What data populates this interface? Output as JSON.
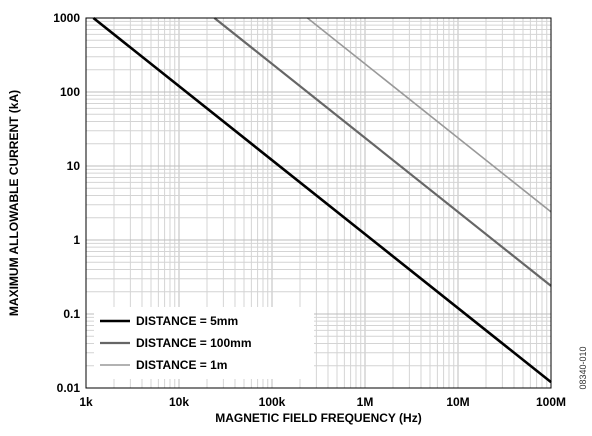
{
  "chart_data": {
    "type": "line",
    "xscale": "log",
    "yscale": "log",
    "xlim": [
      1000,
      100000000
    ],
    "ylim": [
      0.01,
      1000
    ],
    "grid": true,
    "legend_position": "bottom-left",
    "xlabel": "MAGNETIC FIELD FREQUENCY (Hz)",
    "ylabel": "MAXIMUM ALLOWABLE CURRENT (kA)",
    "x_ticks": [
      {
        "value": 1000,
        "label": "1k"
      },
      {
        "value": 10000,
        "label": "10k"
      },
      {
        "value": 100000,
        "label": "100k"
      },
      {
        "value": 1000000,
        "label": "1M"
      },
      {
        "value": 10000000,
        "label": "10M"
      },
      {
        "value": 100000000,
        "label": "100M"
      }
    ],
    "y_ticks": [
      {
        "value": 0.01,
        "label": "0.01"
      },
      {
        "value": 0.1,
        "label": "0.1"
      },
      {
        "value": 1,
        "label": "1"
      },
      {
        "value": 10,
        "label": "10"
      },
      {
        "value": 100,
        "label": "100"
      },
      {
        "value": 1000,
        "label": "1000"
      }
    ],
    "series": [
      {
        "name": "DISTANCE = 5mm",
        "color": "#000000",
        "x": [
          1200,
          100000000
        ],
        "y": [
          1000,
          0.012
        ]
      },
      {
        "name": "DISTANCE = 100mm",
        "color": "#666666",
        "x": [
          24000,
          100000000
        ],
        "y": [
          1000,
          0.24
        ]
      },
      {
        "name": "DISTANCE = 1m",
        "color": "#999999",
        "x": [
          240000,
          100000000
        ],
        "y": [
          1000,
          2.4
        ]
      }
    ],
    "side_code": "08340-010"
  }
}
